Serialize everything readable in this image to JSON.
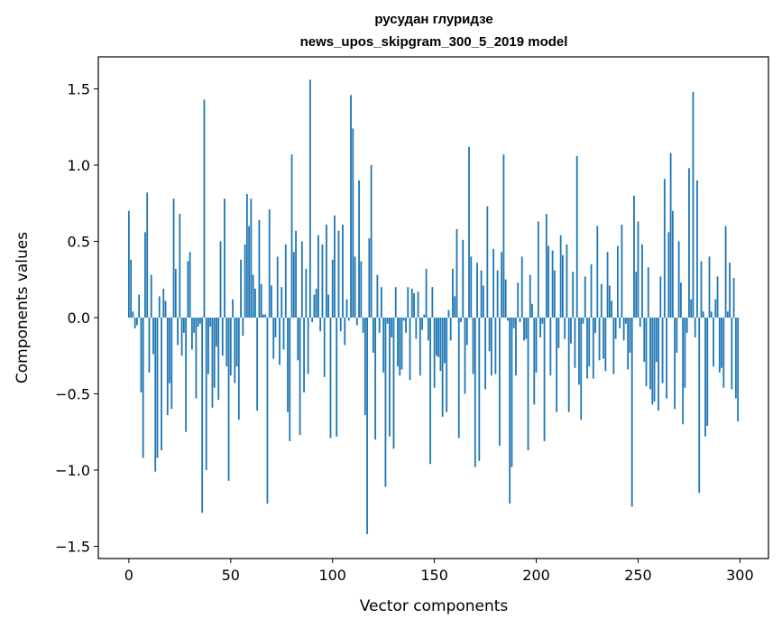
{
  "chart_data": {
    "type": "bar",
    "title": "русудан глуридзе",
    "subtitle": "news_upos_skipgram_300_5_2019 model",
    "xlabel": "Vector components",
    "ylabel": "Components values",
    "xlim": [
      -15,
      314
    ],
    "ylim": [
      -1.58,
      1.71
    ],
    "xticks": [
      0,
      50,
      100,
      150,
      200,
      250,
      300
    ],
    "yticks": [
      -1.5,
      -1.0,
      -0.5,
      0.0,
      0.5,
      1.0,
      1.5
    ],
    "ytick_labels": [
      "−1.5",
      "−1.0",
      "−0.5",
      "0.0",
      "0.5",
      "1.0",
      "1.5"
    ],
    "bar_color": "#1f77b4",
    "values": [
      0.7,
      0.38,
      0.04,
      -0.07,
      -0.05,
      0.15,
      -0.49,
      -0.92,
      0.56,
      0.82,
      -0.36,
      0.28,
      -0.24,
      -1.01,
      -0.92,
      0.14,
      -0.87,
      0.19,
      0.11,
      -0.64,
      -0.43,
      -0.6,
      0.78,
      0.32,
      -0.18,
      0.68,
      -0.25,
      -0.1,
      -0.75,
      0.37,
      0.43,
      -0.21,
      -0.1,
      -0.53,
      -0.06,
      -0.04,
      -1.28,
      1.43,
      -1.0,
      -0.37,
      -0.06,
      -0.59,
      -0.46,
      -0.19,
      -0.54,
      0.5,
      -0.25,
      0.78,
      -0.32,
      -1.07,
      -0.38,
      0.12,
      -0.43,
      -0.32,
      -0.67,
      0.38,
      -0.12,
      0.48,
      0.81,
      0.6,
      0.78,
      0.28,
      0.19,
      -0.61,
      0.64,
      0.22,
      0.02,
      0.02,
      -1.22,
      0.71,
      0.21,
      -0.27,
      -0.13,
      0.4,
      -0.31,
      0.2,
      -0.21,
      0.48,
      -0.62,
      -0.81,
      1.07,
      0.43,
      0.57,
      -0.28,
      -0.77,
      0.5,
      -0.49,
      0.32,
      -0.37,
      1.56,
      -0.03,
      0.15,
      0.19,
      0.54,
      -0.09,
      0.48,
      -0.39,
      0.61,
      0.15,
      -0.79,
      0.38,
      0.67,
      -0.78,
      0.57,
      -0.09,
      0.61,
      -0.18,
      0.12,
      -0.02,
      1.46,
      1.24,
      0.4,
      -0.05,
      0.9,
      0.37,
      -0.1,
      -0.64,
      -1.42,
      0.52,
      1.0,
      -0.23,
      -0.8,
      0.28,
      -0.1,
      0.2,
      -0.36,
      -1.11,
      -0.04,
      -0.78,
      -0.13,
      -0.86,
      0.2,
      -0.32,
      -0.38,
      -0.34,
      -0.02,
      -0.1,
      0.2,
      -0.41,
      0.19,
      0.16,
      -0.14,
      0.17,
      -0.38,
      -0.08,
      0.02,
      0.32,
      -0.15,
      -0.96,
      0.2,
      -0.46,
      -0.25,
      -0.26,
      -0.35,
      -0.65,
      -0.3,
      -0.62,
      0.05,
      -0.15,
      0.32,
      0.14,
      0.58,
      -0.79,
      -0.03,
      0.51,
      -0.5,
      -0.18,
      1.12,
      0.4,
      -0.37,
      -0.98,
      0.36,
      -0.94,
      0.31,
      0.21,
      -0.47,
      0.73,
      -0.22,
      -0.38,
      0.45,
      -0.37,
      0.31,
      -0.84,
      0.43,
      1.07,
      0.25,
      -0.02,
      -1.22,
      -0.98,
      -0.07,
      -0.38,
      0.23,
      -0.03,
      0.4,
      -0.15,
      -0.14,
      -0.87,
      0.28,
      0.09,
      -0.57,
      -0.36,
      0.63,
      -0.13,
      -0.04,
      -0.81,
      0.68,
      0.47,
      -0.38,
      0.44,
      0.31,
      -0.62,
      -0.2,
      0.54,
      0.41,
      -0.14,
      0.48,
      -0.62,
      -0.17,
      0.3,
      -0.33,
      1.06,
      -0.44,
      -0.67,
      -0.04,
      0.27,
      -0.4,
      -0.32,
      0.35,
      -0.4,
      -0.1,
      0.6,
      -0.28,
      0.22,
      -0.27,
      -0.35,
      0.43,
      0.21,
      0.11,
      -0.37,
      -0.14,
      0.47,
      -0.07,
      0.61,
      -0.15,
      -0.04,
      -0.34,
      -0.23,
      -1.24,
      0.8,
      0.3,
      0.63,
      -0.06,
      0.48,
      -0.29,
      -0.45,
      0.33,
      -0.47,
      -0.57,
      -0.55,
      -0.29,
      -0.61,
      0.27,
      -0.43,
      0.91,
      -0.53,
      0.56,
      1.08,
      0.7,
      -0.6,
      -0.23,
      0.5,
      0.23,
      -0.7,
      -0.46,
      -0.1,
      0.98,
      0.12,
      1.48,
      -0.13,
      0.9,
      -1.15,
      0.37,
      0.04,
      -0.78,
      -0.71,
      0.4,
      0.04,
      -0.32,
      0.12,
      0.27,
      -0.36,
      -0.33,
      -0.46,
      0.6,
      0.04,
      0.36,
      -0.47,
      0.26,
      -0.53,
      -0.68
    ]
  }
}
